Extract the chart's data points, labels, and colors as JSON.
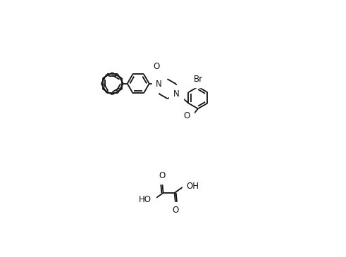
{
  "bg": "#ffffff",
  "lc": "#111111",
  "lw": 1.3,
  "fs": 8.5,
  "figsize": [
    4.91,
    3.65
  ],
  "dpi": 100,
  "xlim": [
    0,
    10
  ],
  "ylim": [
    -3.5,
    7.0
  ],
  "r_ring": 0.58,
  "r_pip": 0.52
}
